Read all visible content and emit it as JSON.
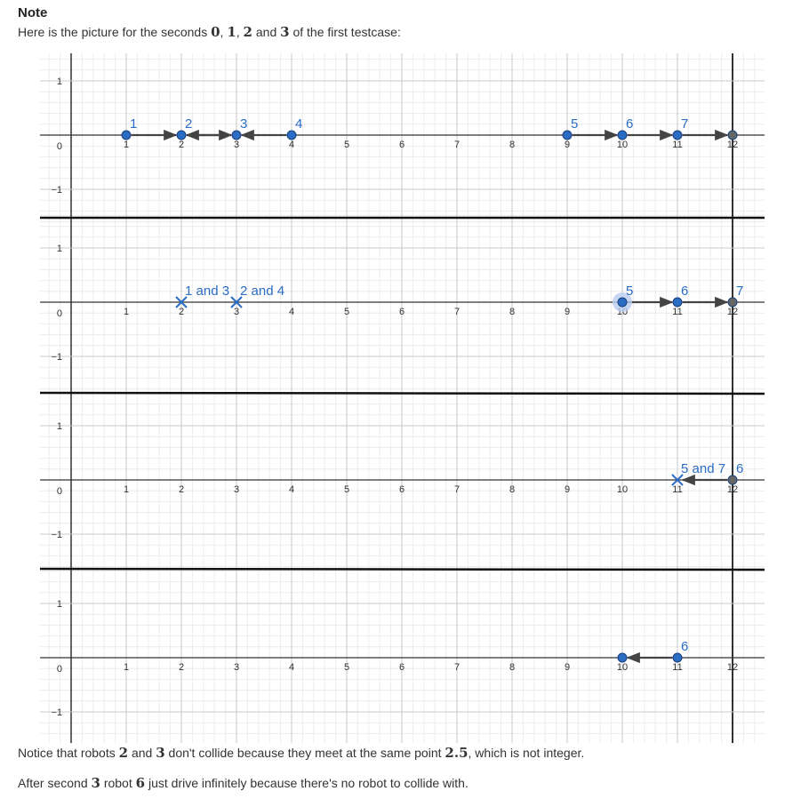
{
  "heading": "Note",
  "intro": {
    "before": "Here is the picture for the seconds ",
    "m0": "0",
    "c1": ", ",
    "m1": "1",
    "c2": ", ",
    "m2": "2",
    "and": " and ",
    "m3": "3",
    "after": " of the first testcase:"
  },
  "notes": {
    "line1_a": "Notice that robots ",
    "line1_m1": "2",
    "line1_b": " and ",
    "line1_m2": "3",
    "line1_c": " don't collide because they meet at the same point ",
    "line1_m3": "2.5",
    "line1_d": ", which is not integer.",
    "line2_a": "After second ",
    "line2_m1": "3",
    "line2_b": " robot ",
    "line2_m2": "6",
    "line2_c": " just drive infinitely because there's no robot to collide with."
  },
  "figure": {
    "x_tick_labels": [
      "0",
      "1",
      "2",
      "3",
      "4",
      "5",
      "6",
      "7",
      "8",
      "9",
      "10",
      "11",
      "12"
    ],
    "y_tick_labels": [
      "1",
      "0",
      "−1"
    ],
    "wall_x": 12,
    "colors": {
      "robot": "#2b6cc4",
      "wall_robot": "#666666",
      "arrow": "#444444",
      "label": "#2b6cc4"
    },
    "panels": [
      {
        "second": 0,
        "points": [
          {
            "x": 1,
            "label": "1"
          },
          {
            "x": 2,
            "label": "2"
          },
          {
            "x": 3,
            "label": "3"
          },
          {
            "x": 4,
            "label": "4"
          },
          {
            "x": 9,
            "label": "5"
          },
          {
            "x": 10,
            "label": "6"
          },
          {
            "x": 11,
            "label": "7"
          },
          {
            "x": 12,
            "label": "",
            "gray": true
          }
        ],
        "crosses": [],
        "arrows": [
          {
            "from": 1,
            "to": 2
          },
          {
            "from": 3,
            "to": 2
          },
          {
            "from": 2,
            "to": 3
          },
          {
            "from": 4,
            "to": 3
          },
          {
            "from": 9,
            "to": 10
          },
          {
            "from": 10,
            "to": 11
          },
          {
            "from": 11,
            "to": 12
          }
        ]
      },
      {
        "second": 1,
        "points": [
          {
            "x": 10,
            "label": "5",
            "halo": true
          },
          {
            "x": 11,
            "label": "6"
          },
          {
            "x": 12,
            "label": "7",
            "gray": true
          }
        ],
        "crosses": [
          {
            "x": 2,
            "label": "1 and 3"
          },
          {
            "x": 3,
            "label": "2 and 4"
          }
        ],
        "arrows": [
          {
            "from": 10,
            "to": 11
          },
          {
            "from": 11,
            "to": 12
          }
        ]
      },
      {
        "second": 2,
        "points": [
          {
            "x": 12,
            "label": "6",
            "gray": true
          }
        ],
        "crosses": [
          {
            "x": 11,
            "label": "5 and 7"
          }
        ],
        "arrows": [
          {
            "from": 12,
            "to": 11
          }
        ]
      },
      {
        "second": 3,
        "points": [
          {
            "x": 10,
            "label": ""
          },
          {
            "x": 11,
            "label": "6"
          }
        ],
        "crosses": [],
        "arrows": [
          {
            "from": 11,
            "to": 10
          }
        ]
      }
    ]
  }
}
